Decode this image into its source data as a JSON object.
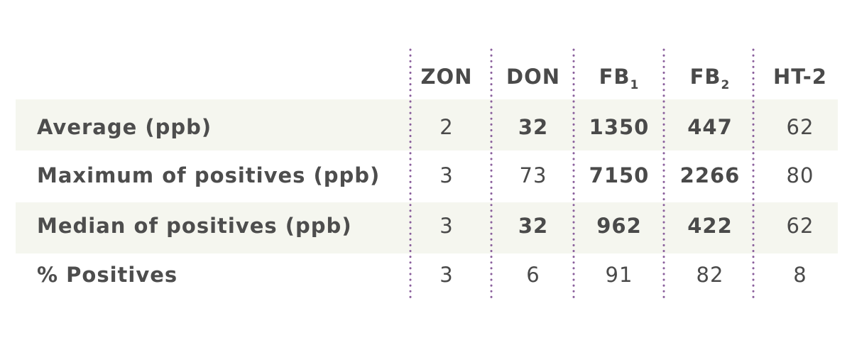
{
  "table": {
    "columns": [
      {
        "label": "ZON"
      },
      {
        "label": "DON"
      },
      {
        "label": "FB",
        "subscript": "1"
      },
      {
        "label": "FB",
        "subscript": "2"
      },
      {
        "label": "HT-2"
      }
    ],
    "rows": [
      {
        "label": "Average (ppb)",
        "values": [
          2,
          32,
          1350,
          447,
          62
        ],
        "colors": [
          "#4a4a4a",
          "#8fb43a",
          "#8fb43a",
          "#8fb43a",
          "#4a4a4a"
        ]
      },
      {
        "label": "Maximum of positives (ppb)",
        "values": [
          3,
          73,
          7150,
          2266,
          80
        ],
        "colors": [
          "#4a4a4a",
          "#4a4a4a",
          "#9c1d5c",
          "#9c1d5c",
          "#4a4a4a"
        ]
      },
      {
        "label": "Median of positives (ppb)",
        "values": [
          3,
          32,
          962,
          422,
          62
        ],
        "colors": [
          "#4a4a4a",
          "#8fb43a",
          "#8fb43a",
          "#8fb43a",
          "#4a4a4a"
        ]
      },
      {
        "label": "% Positives",
        "values": [
          3,
          6,
          91,
          82,
          8
        ],
        "colors": [
          "#4a4a4a",
          "#4a4a4a",
          "#4a4a4a",
          "#4a4a4a",
          "#4a4a4a"
        ]
      }
    ]
  }
}
